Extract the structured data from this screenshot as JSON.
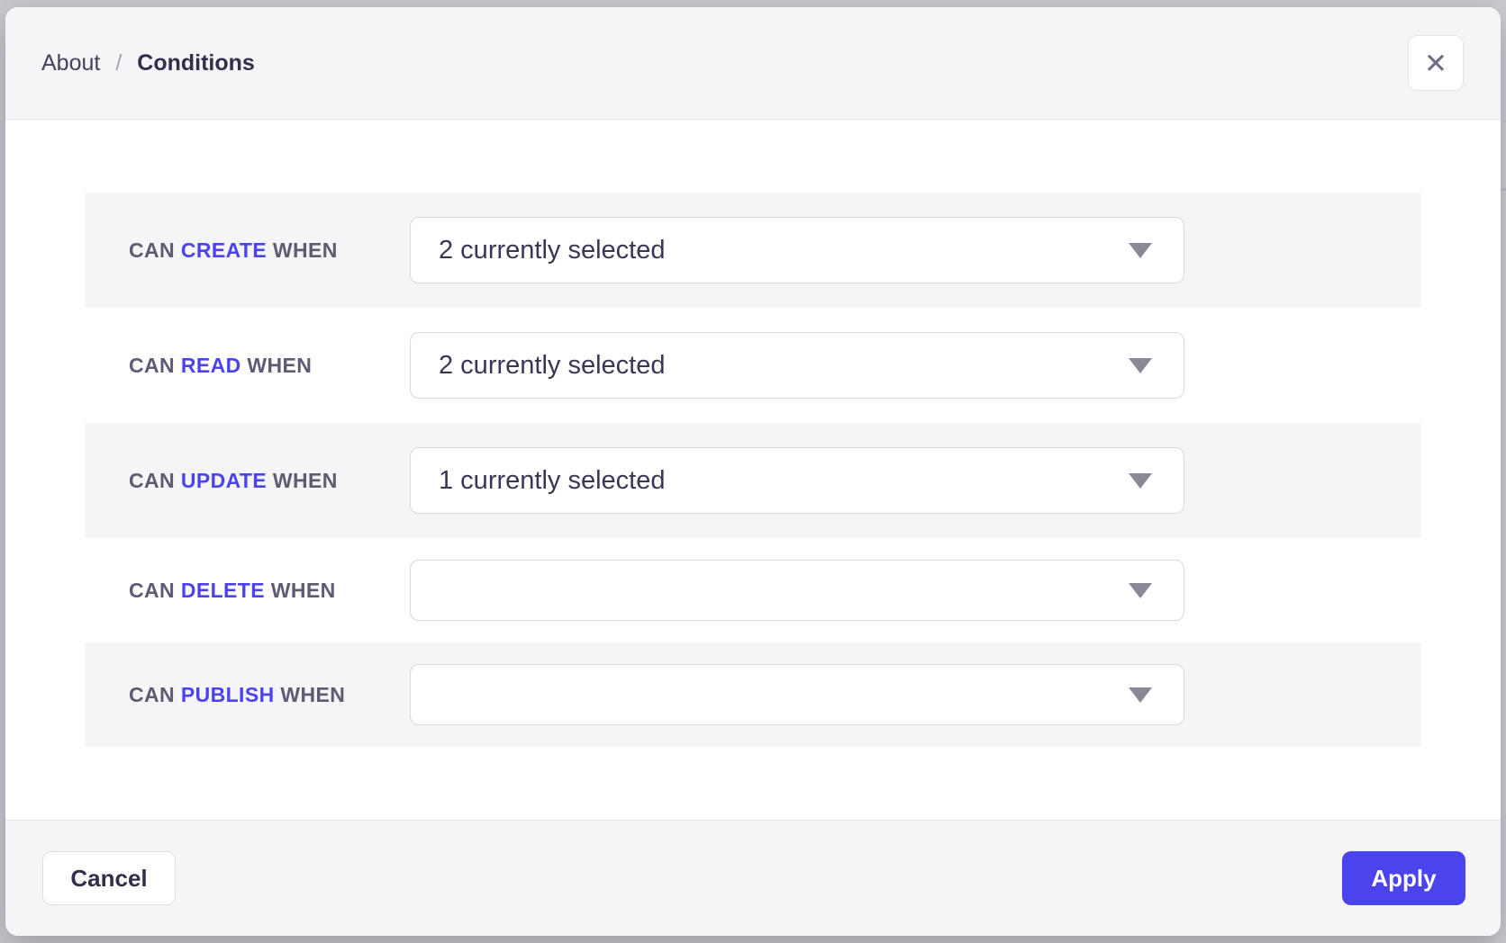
{
  "breadcrumb": {
    "parent": "About",
    "separator": "/",
    "current": "Conditions"
  },
  "icons": {
    "close": "✕",
    "select_caret": "▼"
  },
  "rows": [
    {
      "prefix": "CAN",
      "action": "CREATE",
      "suffix": "WHEN",
      "value": "2 currently selected"
    },
    {
      "prefix": "CAN",
      "action": "READ",
      "suffix": "WHEN",
      "value": "2 currently selected"
    },
    {
      "prefix": "CAN",
      "action": "UPDATE",
      "suffix": "WHEN",
      "value": "1 currently selected"
    },
    {
      "prefix": "CAN",
      "action": "DELETE",
      "suffix": "WHEN",
      "value": ""
    },
    {
      "prefix": "CAN",
      "action": "PUBLISH",
      "suffix": "WHEN",
      "value": ""
    }
  ],
  "footer": {
    "cancel_label": "Cancel",
    "apply_label": "Apply"
  },
  "colors": {
    "accent": "#4b44ec",
    "row_alt_bg": "#f5f5f7",
    "header_footer_bg": "#f5f5f7",
    "backdrop": "#c9c9ce",
    "label_text": "#5e5b72",
    "select_text": "#3a3653",
    "select_border": "#d8d8dd"
  }
}
